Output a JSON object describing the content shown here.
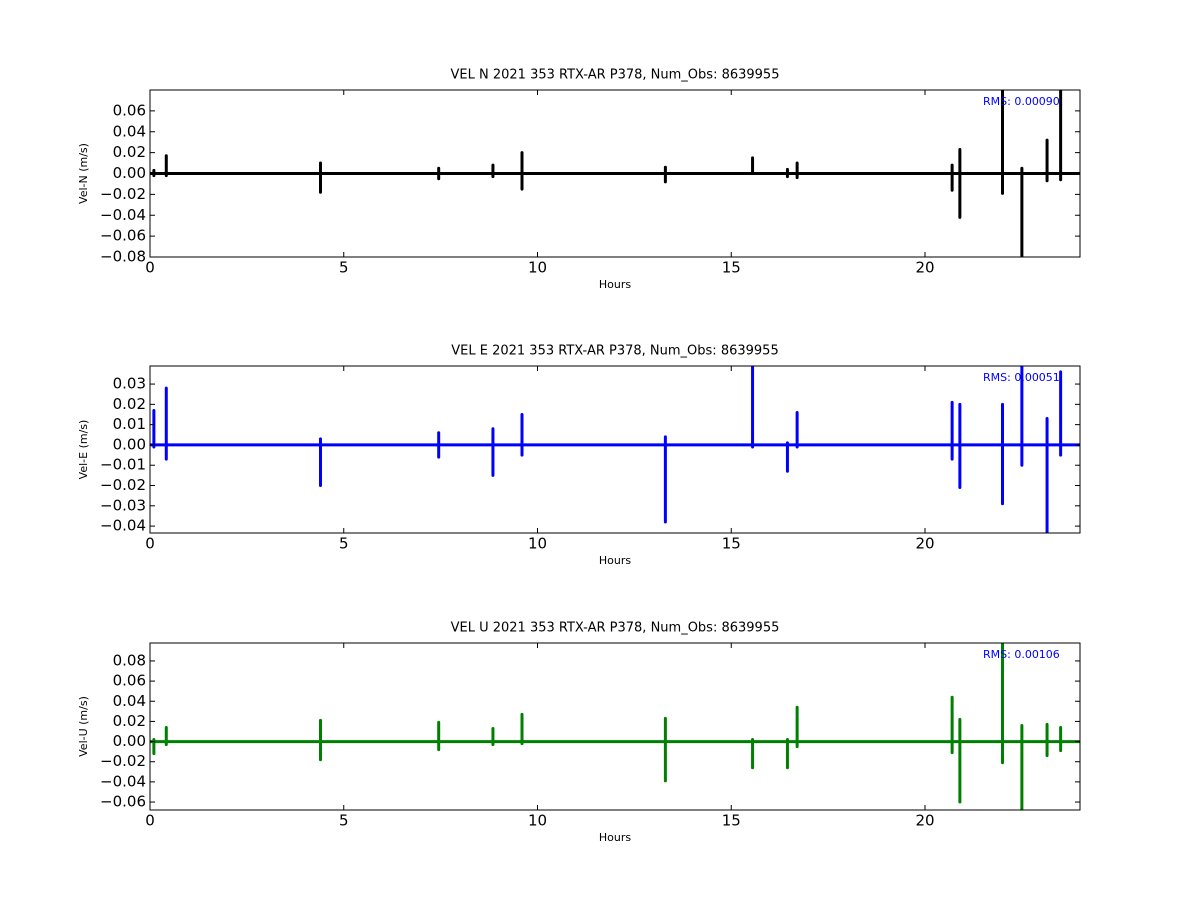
{
  "chart_data": [
    {
      "type": "line",
      "title": "VEL N 2021 353 RTX-AR  P378, Num_Obs: 8639955",
      "xlabel": "Hours",
      "ylabel": "Vel-N (m/s)",
      "annotation": "RMS:  0.00090",
      "color": "#000000",
      "xlim": [
        0,
        24
      ],
      "xticks": [
        0,
        5,
        10,
        15,
        20
      ],
      "ylim": [
        -0.08,
        0.08
      ],
      "yticks": [
        {
          "value": -0.08,
          "label": "−0.08"
        },
        {
          "value": -0.06,
          "label": "−0.06"
        },
        {
          "value": -0.04,
          "label": "−0.04"
        },
        {
          "value": -0.02,
          "label": "−0.02"
        },
        {
          "value": 0,
          "label": "0.00"
        },
        0.02,
        0.04,
        0.06
      ],
      "x": [
        0,
        0.1,
        0.1,
        0.1,
        0.1,
        0.42,
        0.42,
        0.42,
        0.42,
        4.4,
        4.4,
        4.4,
        4.4,
        7.45,
        7.45,
        7.45,
        7.45,
        8.85,
        8.85,
        8.85,
        8.85,
        9.6,
        9.6,
        9.6,
        9.6,
        13.3,
        13.3,
        13.3,
        13.3,
        15.55,
        15.55,
        15.55,
        15.55,
        16.45,
        16.45,
        16.45,
        16.45,
        16.7,
        16.7,
        16.7,
        16.7,
        20.7,
        20.7,
        20.7,
        20.7,
        20.9,
        20.9,
        20.9,
        20.9,
        22,
        22,
        22,
        22,
        22.5,
        22.5,
        22.5,
        22.5,
        23.15,
        23.15,
        23.15,
        23.15,
        23.5,
        23.5,
        23.5,
        23.5,
        24
      ],
      "values": [
        0,
        0,
        0.003,
        -0.002,
        0,
        0,
        0.017,
        -0.002,
        0,
        0,
        0.01,
        -0.018,
        0,
        0,
        0.005,
        -0.005,
        0,
        0,
        0.008,
        -0.003,
        0,
        0,
        0.02,
        -0.015,
        0,
        0,
        0.006,
        -0.008,
        0,
        0,
        0.015,
        0,
        0,
        0,
        0.004,
        -0.003,
        0,
        0,
        0.01,
        -0.004,
        0,
        0,
        0.008,
        -0.016,
        0,
        0,
        0.023,
        -0.042,
        0,
        0,
        0.08,
        -0.019,
        0,
        0,
        0.005,
        -0.08,
        0,
        0,
        0.032,
        -0.007,
        0,
        0,
        0.08,
        -0.006,
        0,
        0
      ]
    },
    {
      "type": "line",
      "title": "VEL E 2021 353 RTX-AR  P378, Num_Obs: 8639955",
      "xlabel": "Hours",
      "ylabel": "Vel-E (m/s)",
      "annotation": "RMS:  0.00051",
      "color": "#0000ff",
      "xlim": [
        0,
        24
      ],
      "xticks": [
        0,
        5,
        10,
        15,
        20
      ],
      "ylim": [
        -0.0434,
        0.0389
      ],
      "yticks": [
        {
          "value": -0.04,
          "label": "−0.04"
        },
        {
          "value": -0.03,
          "label": "−0.03"
        },
        {
          "value": -0.02,
          "label": "−0.02"
        },
        {
          "value": -0.01,
          "label": "−0.01"
        },
        {
          "value": 0,
          "label": "0.00"
        },
        0.01,
        0.02,
        0.03
      ],
      "x": [
        0,
        0.1,
        0.1,
        0.1,
        0.1,
        0.42,
        0.42,
        0.42,
        0.42,
        4.4,
        4.4,
        4.4,
        4.4,
        7.45,
        7.45,
        7.45,
        7.45,
        8.85,
        8.85,
        8.85,
        8.85,
        9.6,
        9.6,
        9.6,
        9.6,
        13.3,
        13.3,
        13.3,
        13.3,
        15.55,
        15.55,
        15.55,
        15.55,
        16.45,
        16.45,
        16.45,
        16.45,
        16.7,
        16.7,
        16.7,
        16.7,
        20.7,
        20.7,
        20.7,
        20.7,
        20.9,
        20.9,
        20.9,
        20.9,
        22,
        22,
        22,
        22,
        22.5,
        22.5,
        22.5,
        22.5,
        23.15,
        23.15,
        23.15,
        23.15,
        23.5,
        23.5,
        23.5,
        23.5,
        24
      ],
      "values": [
        0,
        0,
        0.017,
        -0.001,
        0,
        0,
        0.028,
        -0.007,
        0,
        0,
        0.003,
        -0.02,
        0,
        0,
        0.006,
        -0.006,
        0,
        0,
        0.008,
        -0.015,
        0,
        0,
        0.015,
        -0.005,
        0,
        0,
        0.004,
        -0.038,
        0,
        0,
        0.039,
        -0.001,
        0,
        0,
        0.001,
        -0.013,
        0,
        0,
        0.016,
        -0.001,
        0,
        0,
        0.021,
        -0.007,
        0,
        0,
        0.02,
        -0.021,
        0,
        0,
        0.02,
        -0.029,
        0,
        0,
        0.039,
        -0.01,
        0,
        0,
        0.013,
        -0.043,
        0,
        0,
        0.036,
        -0.005,
        0,
        0
      ]
    },
    {
      "type": "line",
      "title": "VEL U 2021 353 RTX-AR  P378, Num_Obs: 8639955",
      "xlabel": "Hours",
      "ylabel": "Vel-U (m/s)",
      "annotation": "RMS:  0.00106",
      "color": "#008000",
      "xlim": [
        0,
        24
      ],
      "xticks": [
        0,
        5,
        10,
        15,
        20
      ],
      "ylim": [
        -0.0679,
        0.0978
      ],
      "yticks": [
        {
          "value": -0.06,
          "label": "−0.06"
        },
        {
          "value": -0.04,
          "label": "−0.04"
        },
        {
          "value": -0.02,
          "label": "−0.02"
        },
        {
          "value": 0,
          "label": "0.00"
        },
        0.02,
        0.04,
        0.06,
        0.08
      ],
      "x": [
        0,
        0.1,
        0.1,
        0.1,
        0.1,
        0.42,
        0.42,
        0.42,
        0.42,
        4.4,
        4.4,
        4.4,
        4.4,
        7.45,
        7.45,
        7.45,
        7.45,
        8.85,
        8.85,
        8.85,
        8.85,
        9.6,
        9.6,
        9.6,
        9.6,
        13.3,
        13.3,
        13.3,
        13.3,
        15.55,
        15.55,
        15.55,
        15.55,
        16.45,
        16.45,
        16.45,
        16.45,
        16.7,
        16.7,
        16.7,
        16.7,
        20.7,
        20.7,
        20.7,
        20.7,
        20.9,
        20.9,
        20.9,
        20.9,
        22,
        22,
        22,
        22,
        22.5,
        22.5,
        22.5,
        22.5,
        23.15,
        23.15,
        23.15,
        23.15,
        23.5,
        23.5,
        23.5,
        23.5,
        24
      ],
      "values": [
        0,
        0,
        0.002,
        -0.012,
        0,
        0,
        0.014,
        -0.003,
        0,
        0,
        0.021,
        -0.018,
        0,
        0,
        0.019,
        -0.008,
        0,
        0,
        0.013,
        -0.003,
        0,
        0,
        0.027,
        -0.002,
        0,
        0,
        0.023,
        -0.039,
        0,
        0,
        0.002,
        -0.026,
        0,
        0,
        0.002,
        -0.026,
        0,
        0,
        0.034,
        -0.005,
        0,
        0,
        0.044,
        -0.011,
        0,
        0,
        0.022,
        -0.06,
        0,
        0,
        0.097,
        -0.021,
        0,
        0,
        0.016,
        -0.067,
        0,
        0,
        0.017,
        -0.014,
        0,
        0,
        0.014,
        -0.009,
        0,
        0
      ]
    }
  ]
}
